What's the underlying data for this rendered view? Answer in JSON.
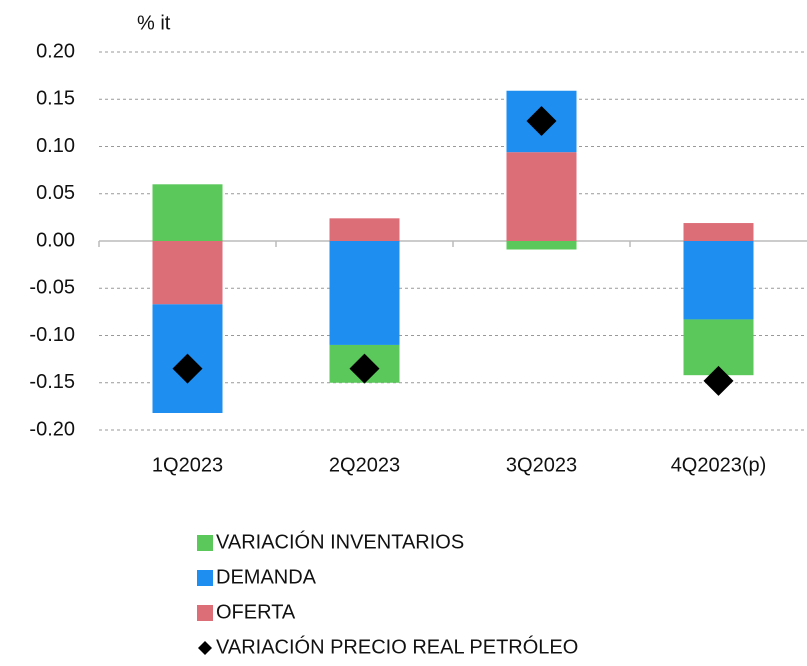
{
  "chart_data": {
    "type": "bar",
    "stacked": true,
    "y_label": "% it",
    "categories": [
      "1Q2023",
      "2Q2023",
      "3Q2023",
      "4Q2023(p)"
    ],
    "series": [
      {
        "name": "VARIACIÓN INVENTARIOS",
        "color": "#5ac85a",
        "values": [
          0.06,
          -0.04,
          -0.009,
          -0.059
        ]
      },
      {
        "name": "DEMANDA",
        "color": "#1e8ef0",
        "values": [
          -0.115,
          -0.11,
          0.065,
          -0.083
        ]
      },
      {
        "name": "OFERTA",
        "color": "#dc6e78",
        "values": [
          -0.067,
          0.024,
          0.094,
          0.019
        ]
      },
      {
        "name": "VARIACIÓN PRECIO REAL PETRÓLEO",
        "type": "scatter",
        "marker": "diamond",
        "color": "#000000",
        "values": [
          -0.135,
          -0.135,
          0.127,
          -0.148
        ]
      }
    ],
    "stack_order": [
      "OFERTA",
      "DEMANDA",
      "VARIACIÓN INVENTARIOS"
    ],
    "ylim": [
      -0.2,
      0.2
    ],
    "yticks": [
      {
        "value": 0.2,
        "label": "0.20"
      },
      {
        "value": 0.15,
        "label": "0.15"
      },
      {
        "value": 0.1,
        "label": "0.10"
      },
      {
        "value": 0.05,
        "label": "0.05"
      },
      {
        "value": 0,
        "label": "0.00"
      },
      {
        "value": -0.05,
        "label": "-0.05"
      },
      {
        "value": -0.1,
        "label": "-0.10"
      },
      {
        "value": -0.15,
        "label": "-0.15"
      },
      {
        "value": -0.2,
        "label": "-0.20"
      }
    ],
    "grid": true,
    "legend": "bottom"
  }
}
